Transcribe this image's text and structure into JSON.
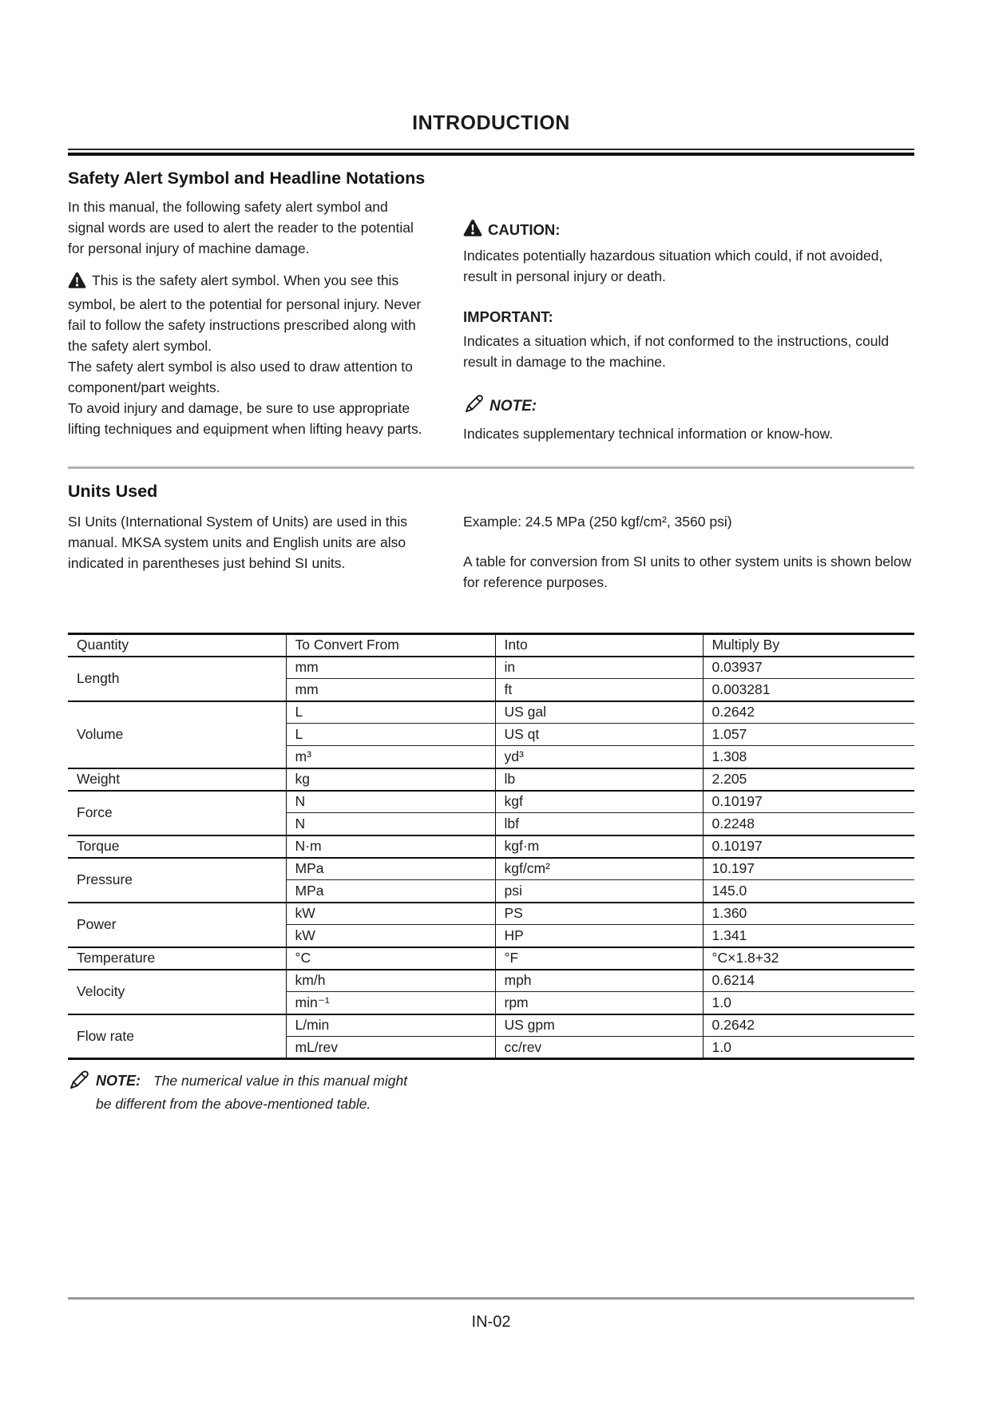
{
  "page": {
    "title": "INTRODUCTION",
    "footer": "IN-02"
  },
  "safety": {
    "heading": "Safety Alert Symbol and Headline Notations",
    "intro": "In this manual, the following safety alert symbol and signal words are used to alert the reader to the potential for personal injury of machine damage.",
    "symbol_text": "This is the safety alert symbol. When you see this symbol, be alert to the potential for personal injury. Never fail to follow the safety instructions prescribed along with the safety alert symbol.\nThe safety alert symbol is also used to draw attention to component/part weights.\nTo avoid injury and damage, be sure to use appropriate lifting techniques and equipment when lifting heavy parts.",
    "caution": {
      "label": "CAUTION:",
      "text": "Indicates potentially hazardous situation which could, if not avoided, result in personal injury or death."
    },
    "important": {
      "label": "IMPORTANT:",
      "text": "Indicates a situation which, if not conformed to the instructions, could result in damage to the machine."
    },
    "note": {
      "label": "NOTE:",
      "text": "Indicates supplementary technical information or know-how."
    }
  },
  "units": {
    "heading": "Units Used",
    "left": "SI Units (International System of Units) are used in this manual. MKSA system units and English units are also indicated in parentheses just behind SI units.",
    "example": "Example: 24.5 MPa (250 kgf/cm², 3560 psi)",
    "right": "A table for conversion from SI units to other system units is shown below for reference purposes."
  },
  "conversion_table": {
    "headers": [
      "Quantity",
      "To Convert From",
      "Into",
      "Multiply By"
    ],
    "groups": [
      {
        "quantity": "Length",
        "rows": [
          [
            "mm",
            "in",
            "0.03937"
          ],
          [
            "mm",
            "ft",
            "0.003281"
          ]
        ]
      },
      {
        "quantity": "Volume",
        "rows": [
          [
            "L",
            "US gal",
            "0.2642"
          ],
          [
            "L",
            "US qt",
            "1.057"
          ],
          [
            "m³",
            "yd³",
            "1.308"
          ]
        ]
      },
      {
        "quantity": "Weight",
        "rows": [
          [
            "kg",
            "lb",
            "2.205"
          ]
        ]
      },
      {
        "quantity": "Force",
        "rows": [
          [
            "N",
            "kgf",
            "0.10197"
          ],
          [
            "N",
            "lbf",
            "0.2248"
          ]
        ]
      },
      {
        "quantity": "Torque",
        "rows": [
          [
            "N·m",
            "kgf·m",
            "0.10197"
          ]
        ]
      },
      {
        "quantity": "Pressure",
        "rows": [
          [
            "MPa",
            "kgf/cm²",
            "10.197"
          ],
          [
            "MPa",
            "psi",
            "145.0"
          ]
        ]
      },
      {
        "quantity": "Power",
        "rows": [
          [
            "kW",
            "PS",
            "1.360"
          ],
          [
            "kW",
            "HP",
            "1.341"
          ]
        ]
      },
      {
        "quantity": "Temperature",
        "rows": [
          [
            "°C",
            "°F",
            "°C×1.8+32"
          ]
        ]
      },
      {
        "quantity": "Velocity",
        "rows": [
          [
            "km/h",
            "mph",
            "0.6214"
          ],
          [
            "min⁻¹",
            "rpm",
            "1.0"
          ]
        ]
      },
      {
        "quantity": "Flow rate",
        "rows": [
          [
            "L/min",
            "US gpm",
            "0.2642"
          ],
          [
            "mL/rev",
            "cc/rev",
            "1.0"
          ]
        ]
      }
    ]
  },
  "bottom_note": {
    "label": "NOTE:",
    "text": "The numerical value in this manual might be different from the above-mentioned table."
  }
}
